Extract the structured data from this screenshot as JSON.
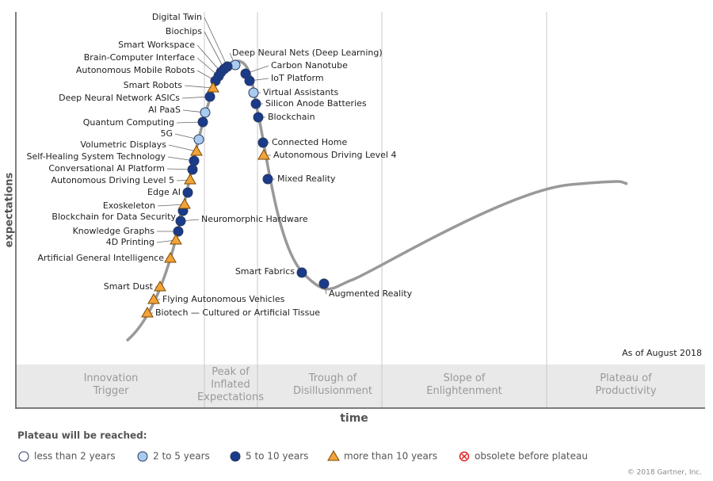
{
  "axis": {
    "y_label": "expectations",
    "x_label": "time"
  },
  "as_of": "As of August 2018",
  "phases": [
    "Innovation Trigger",
    "Peak of Inflated Expectations",
    "Trough of Disillusionment",
    "Slope of Enlightenment",
    "Plateau of Productivity"
  ],
  "legend": {
    "title": "Plateau will be reached:",
    "entries": [
      {
        "label": "less than 2 years",
        "technologies": []
      },
      {
        "label": "2 to 5 years",
        "technologies": [
          "Deep Neural Nets (Deep Learning)",
          "Virtual Assistants",
          "AI PaaS",
          "5G"
        ]
      },
      {
        "label": "5 to 10 years",
        "technologies": [
          "Digital Twin",
          "Biochips",
          "Smart Workspace",
          "Brain-Computer Interface",
          "Autonomous Mobile Robots",
          "Deep Neural Network ASICs",
          "Quantum Computing",
          "Self-Healing System Technology",
          "Conversational AI Platform",
          "Edge AI",
          "Blockchain for Data Security",
          "Neuromorphic Hardware",
          "Knowledge Graphs",
          "Carbon Nanotube",
          "IoT Platform",
          "Silicon Anode Batteries",
          "Blockchain",
          "Connected Home",
          "Mixed Reality",
          "Smart Fabrics",
          "Augmented Reality"
        ]
      },
      {
        "label": "more than 10 years",
        "technologies": [
          "Smart Robots",
          "Volumetric Displays",
          "Autonomous Driving Level 5",
          "Exoskeleton",
          "4D Printing",
          "Artificial General Intelligence",
          "Smart Dust",
          "Flying Autonomous Vehicles",
          "Biotech — Cultured or Artificial Tissue",
          "Autonomous Driving Level 4"
        ]
      },
      {
        "label": "obsolete before plateau",
        "technologies": []
      }
    ]
  },
  "copyright": "© 2018 Gartner, Inc."
}
